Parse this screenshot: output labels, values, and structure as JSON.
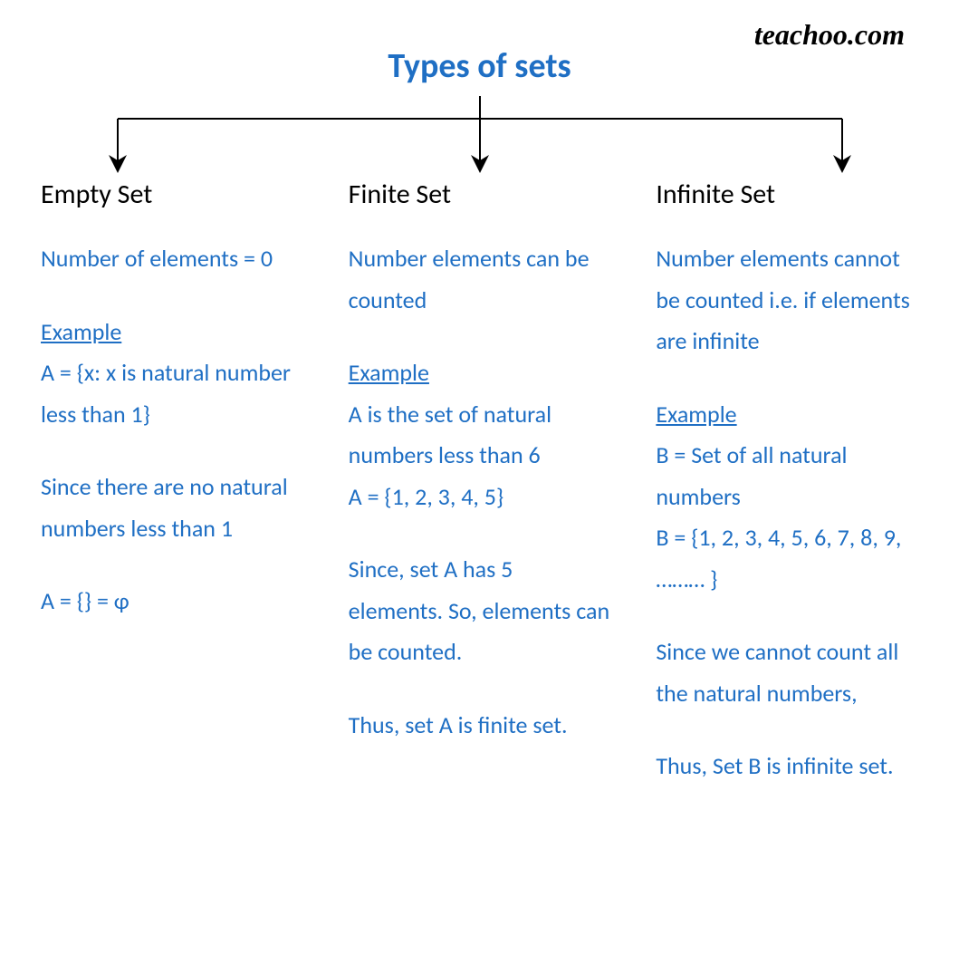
{
  "watermark": "teachoo.com",
  "title": "Types of sets",
  "colors": {
    "title_color": "#1f6fc4",
    "heading_color": "#000000",
    "body_color": "#1f6fc4",
    "background": "#ffffff",
    "arrow_color": "#000000"
  },
  "typography": {
    "title_fontsize": 38,
    "heading_fontsize": 30,
    "body_fontsize": 26,
    "line_height": 1.75
  },
  "diagram": {
    "type": "tree",
    "root": "Types of sets",
    "branches": 3,
    "connector": {
      "style": "bracket-with-arrows",
      "stroke_width": 2,
      "arrowhead": "filled-triangle"
    }
  },
  "columns": [
    {
      "heading": "Empty Set",
      "description": "Number of elements = 0",
      "example_label": "Example",
      "example_text": "A = {x: x is natural number less than 1}",
      "paragraphs": [
        "Since there are no natural numbers less than 1",
        "A = {} = φ"
      ]
    },
    {
      "heading": "Finite Set",
      "description": "Number elements can be counted",
      "example_label": "Example",
      "example_text": "A is the set of natural numbers less than 6\nA = {1, 2, 3, 4, 5}",
      "paragraphs": [
        "Since, set A has 5 elements. So, elements can be counted.",
        "Thus, set A is finite set."
      ]
    },
    {
      "heading": "Infinite Set",
      "description": "Number elements cannot be counted i.e. if elements are infinite",
      "example_label": "Example",
      "example_text": "B = Set of all natural numbers\nB = {1, 2, 3, 4, 5, 6, 7, 8, 9, ……… }",
      "paragraphs": [
        "Since we cannot count all the natural numbers,",
        "Thus, Set B is infinite set."
      ]
    }
  ]
}
